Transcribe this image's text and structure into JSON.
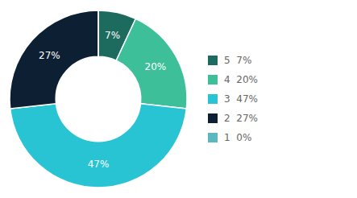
{
  "chart_data": {
    "type": "donut",
    "categories": [
      "5  7%",
      "4  20%",
      "3  47%",
      "2  27%",
      "1  0%"
    ],
    "values": [
      7,
      20,
      47,
      27,
      0
    ],
    "value_labels": [
      "7%",
      "20%",
      "47%",
      "27%",
      null
    ],
    "colors": [
      "#1d6b5e",
      "#3dbf9a",
      "#28c4d4",
      "#0d1f33",
      "#5bb8c0"
    ],
    "data_labels": true,
    "legend": "right"
  }
}
